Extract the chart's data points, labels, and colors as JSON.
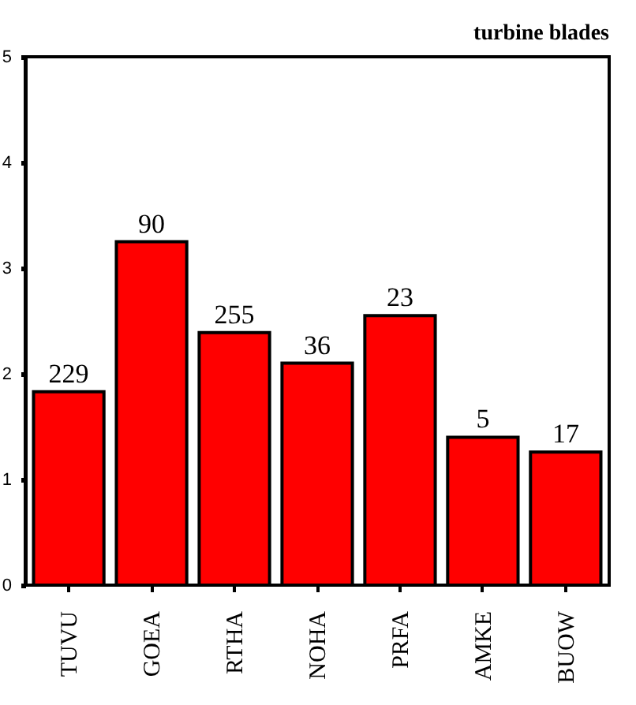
{
  "chart_data": {
    "type": "bar",
    "title": "turbine blades",
    "categories": [
      "TUVU",
      "GOEA",
      "RTHA",
      "NOHA",
      "PRFA",
      "AMKE",
      "BUOW"
    ],
    "values": [
      1.83,
      3.25,
      2.39,
      2.1,
      2.55,
      1.4,
      1.26
    ],
    "annotations": [
      {
        "text": "229",
        "x": "TUVU",
        "y": 1.83
      },
      {
        "text": "90",
        "x": "GOEA",
        "y": 3.25
      },
      {
        "text": "255",
        "x": "RTHA",
        "y": 2.39
      },
      {
        "text": "36",
        "x": "NOHA",
        "y": 2.1
      },
      {
        "text": "23",
        "x": "PRFA",
        "y": 2.55
      },
      {
        "text": "5",
        "x": "AMKE",
        "y": 1.4
      },
      {
        "text": "17",
        "x": "BUOW",
        "y": 1.26
      }
    ],
    "color": "#ff0000",
    "ylim": [
      0,
      5
    ],
    "yticks": [
      0,
      1,
      2,
      3,
      4,
      5
    ],
    "grid": false
  }
}
